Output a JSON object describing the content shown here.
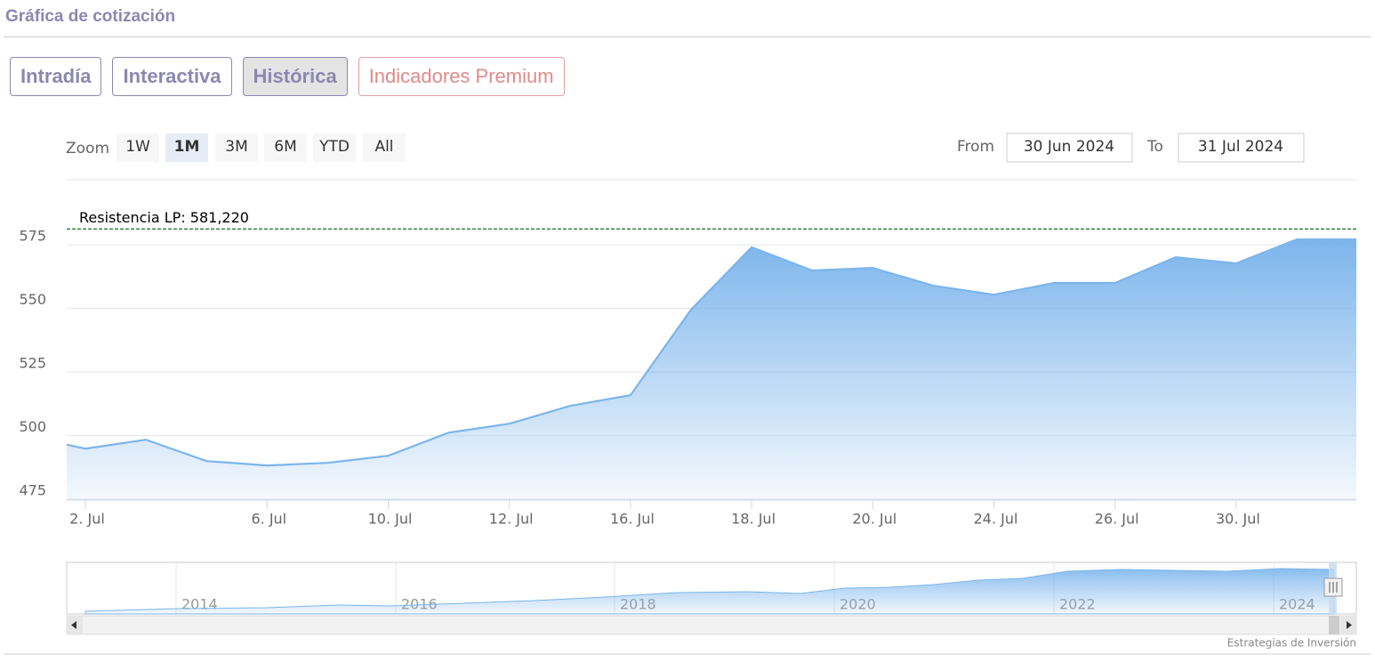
{
  "header": {
    "title": "Gráfica de cotización"
  },
  "tabs": [
    "Intradía",
    "Interactiva",
    "Histórica",
    "Indicadores Premium"
  ],
  "zoom": {
    "label": "Zoom",
    "buttons": [
      "1W",
      "1M",
      "3M",
      "6M",
      "YTD",
      "All"
    ]
  },
  "range": {
    "from_label": "From",
    "from": "30 Jun 2024",
    "to_label": "To",
    "to": "31 Jul 2024"
  },
  "navigator": {
    "labels": [
      "2014",
      "2016",
      "2018",
      "2020",
      "2022",
      "2024"
    ]
  },
  "credits": "Estrategias de Inversión",
  "chart_data": {
    "type": "area",
    "categories": [
      null,
      "2. Jul",
      null,
      null,
      "6. Jul",
      null,
      "10. Jul",
      null,
      "12. Jul",
      null,
      "16. Jul",
      null,
      "18. Jul",
      null,
      "20. Jul",
      null,
      "24. Jul",
      null,
      "26. Jul",
      null,
      "30. Jul",
      null,
      null
    ],
    "values": [
      500,
      494.9,
      498.4,
      490,
      488.3,
      489.3,
      492.1,
      501.2,
      504.7,
      511.7,
      515.9,
      549.5,
      574,
      564.9,
      565.9,
      558.9,
      555.4,
      560,
      560,
      570.1,
      567.7,
      577.1,
      577.1
    ],
    "color": "#7cb5ec",
    "ylim": [
      474.7,
      600.2
    ],
    "yticks": [
      475,
      500,
      525,
      550,
      575
    ],
    "grid": true,
    "plot_line": {
      "value": 581.22,
      "label": "Resistencia LP: 581,220",
      "color": "#006400"
    }
  }
}
